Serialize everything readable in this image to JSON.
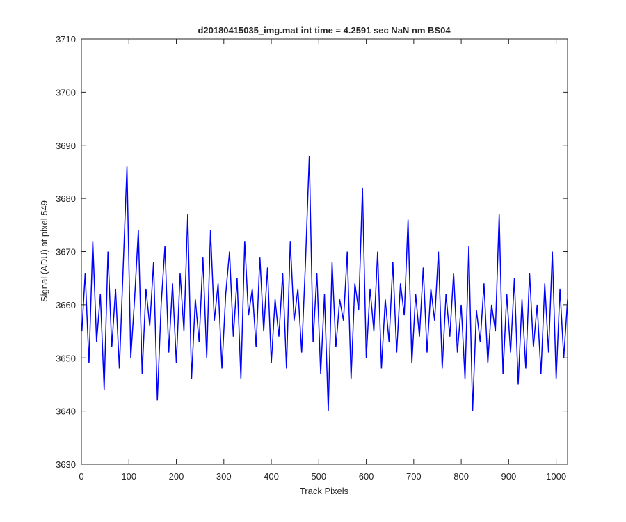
{
  "chart_data": {
    "type": "line",
    "title": "d20180415035_img.mat int time = 4.2591 sec  NaN nm BS04",
    "xlabel": "Track Pixels",
    "ylabel": "Signal (ADU) at pixel 549",
    "xlim": [
      0,
      1024
    ],
    "ylim": [
      3630,
      3710
    ],
    "xticks": [
      0,
      100,
      200,
      300,
      400,
      500,
      600,
      700,
      800,
      900,
      1000
    ],
    "yticks": [
      3630,
      3640,
      3650,
      3660,
      3670,
      3680,
      3690,
      3700,
      3710
    ],
    "grid": false,
    "legend": "none",
    "series": [
      {
        "color": "#0000ff",
        "x": [
          1,
          8,
          16,
          24,
          32,
          40,
          48,
          56,
          64,
          72,
          80,
          88,
          96,
          104,
          112,
          120,
          128,
          136,
          144,
          152,
          160,
          168,
          176,
          184,
          192,
          200,
          208,
          216,
          224,
          232,
          240,
          248,
          256,
          264,
          272,
          280,
          288,
          296,
          304,
          312,
          320,
          328,
          336,
          344,
          352,
          360,
          368,
          376,
          384,
          392,
          400,
          408,
          416,
          424,
          432,
          440,
          448,
          456,
          464,
          472,
          480,
          488,
          496,
          504,
          512,
          520,
          528,
          536,
          544,
          552,
          560,
          568,
          576,
          584,
          592,
          600,
          608,
          616,
          624,
          632,
          640,
          648,
          656,
          664,
          672,
          680,
          688,
          696,
          704,
          712,
          720,
          728,
          736,
          744,
          752,
          760,
          768,
          776,
          784,
          792,
          800,
          808,
          816,
          824,
          832,
          840,
          848,
          856,
          864,
          872,
          880,
          888,
          896,
          904,
          912,
          920,
          928,
          936,
          944,
          952,
          960,
          968,
          976,
          984,
          992,
          1000,
          1008,
          1016,
          1024
        ],
        "values": [
          3655,
          3666,
          3649,
          3672,
          3653,
          3662,
          3644,
          3670,
          3652,
          3663,
          3648,
          3667,
          3686,
          3650,
          3661,
          3674,
          3647,
          3663,
          3656,
          3668,
          3642,
          3660,
          3671,
          3651,
          3664,
          3649,
          3666,
          3655,
          3677,
          3646,
          3661,
          3653,
          3669,
          3650,
          3674,
          3657,
          3664,
          3648,
          3662,
          3670,
          3654,
          3665,
          3646,
          3672,
          3658,
          3663,
          3652,
          3669,
          3655,
          3667,
          3649,
          3661,
          3654,
          3666,
          3648,
          3672,
          3657,
          3663,
          3651,
          3668,
          3688,
          3653,
          3666,
          3647,
          3662,
          3640,
          3668,
          3652,
          3661,
          3657,
          3670,
          3646,
          3664,
          3659,
          3682,
          3650,
          3663,
          3655,
          3670,
          3648,
          3661,
          3653,
          3668,
          3651,
          3664,
          3658,
          3676,
          3649,
          3662,
          3654,
          3667,
          3651,
          3663,
          3657,
          3670,
          3648,
          3662,
          3654,
          3666,
          3651,
          3660,
          3646,
          3671,
          3640,
          3659,
          3653,
          3664,
          3649,
          3660,
          3655,
          3677,
          3647,
          3662,
          3651,
          3665,
          3645,
          3661,
          3648,
          3666,
          3652,
          3660,
          3647,
          3664,
          3651,
          3670,
          3646,
          3663,
          3650,
          3661
        ]
      }
    ]
  }
}
